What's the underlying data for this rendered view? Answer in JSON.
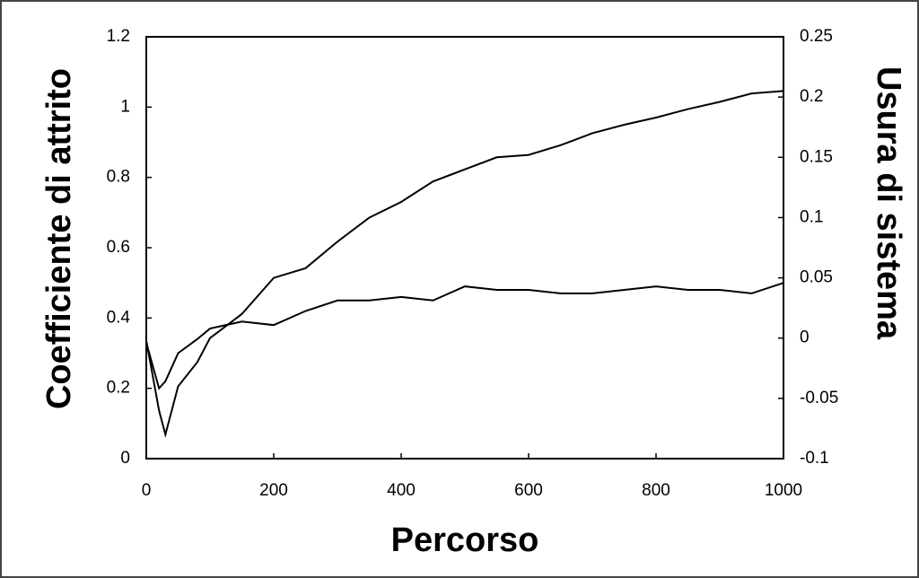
{
  "chart_data": {
    "type": "line",
    "xlabel": "Percorso",
    "ylabel": "Coefficiente di attrito",
    "y2label": "Usura di sistema",
    "x": [
      0,
      20,
      30,
      50,
      80,
      100,
      150,
      200,
      250,
      300,
      350,
      400,
      450,
      500,
      550,
      600,
      650,
      700,
      750,
      800,
      850,
      900,
      950,
      1000
    ],
    "series": [
      {
        "color": "#000000",
        "values": [
          0.33,
          0.2,
          0.22,
          0.3,
          0.34,
          0.37,
          0.39,
          0.38,
          0.42,
          0.45,
          0.45,
          0.46,
          0.45,
          0.49,
          0.48,
          0.48,
          0.47,
          0.47,
          0.48,
          0.49,
          0.48,
          0.48,
          0.47,
          0.5
        ]
      },
      {
        "color": "#000000",
        "axis": "y2",
        "values": [
          -0.002,
          -0.06,
          -0.08,
          -0.04,
          -0.02,
          0.0,
          0.02,
          0.05,
          0.058,
          0.08,
          0.1,
          0.113,
          0.13,
          0.14,
          0.15,
          0.152,
          0.16,
          0.17,
          0.177,
          0.183,
          0.19,
          0.196,
          0.203,
          0.205
        ]
      }
    ],
    "xlim": [
      0,
      1000
    ],
    "xticks": [
      0,
      200,
      400,
      600,
      800,
      1000
    ],
    "ylim": [
      0,
      1.2
    ],
    "yticks": [
      0,
      0.2,
      0.4,
      0.6,
      0.8,
      1,
      1.2
    ],
    "y2lim": [
      -0.1,
      0.25
    ],
    "y2ticks": [
      -0.1,
      -0.05,
      0,
      0.05,
      0.1,
      0.15,
      0.2,
      0.25
    ],
    "grid": false
  }
}
